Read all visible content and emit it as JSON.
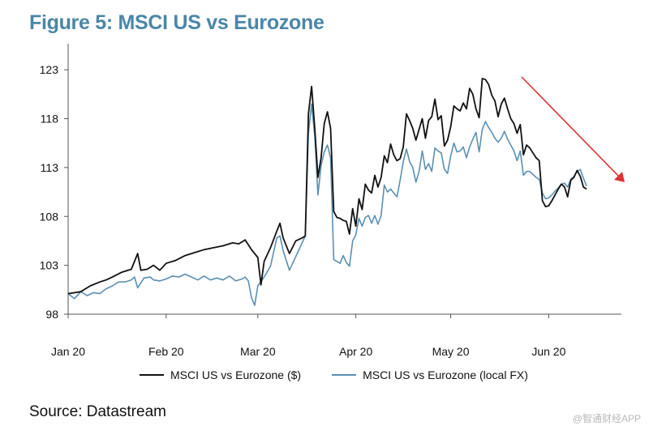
{
  "title": "Figure 5: MSCI US vs Eurozone",
  "source": "Source: Datastream",
  "watermark": "@智通财经APP",
  "colors": {
    "usd": "#111111",
    "local": "#5b8fb3",
    "arrow": "#e03030",
    "axis": "#555555"
  },
  "chart_data": {
    "type": "line",
    "title": "Figure 5: MSCI US vs Eurozone",
    "xlabel": "",
    "ylabel": "",
    "ylim": [
      98,
      125
    ],
    "xlim": [
      0,
      175
    ],
    "yticks": [
      98,
      103,
      108,
      113,
      118,
      123
    ],
    "xticks": [
      {
        "label": "Jan 20",
        "x": 0
      },
      {
        "label": "Feb 20",
        "x": 31
      },
      {
        "label": "Mar 20",
        "x": 60
      },
      {
        "label": "Apr 20",
        "x": 91
      },
      {
        "label": "May 20",
        "x": 121
      },
      {
        "label": "Jun 20",
        "x": 152
      }
    ],
    "grid": false,
    "legend": "bottom",
    "series": [
      {
        "name": "MSCI US vs Eurozone ($)",
        "points": [
          [
            0,
            100.1
          ],
          [
            4,
            100.3
          ],
          [
            7,
            100.9
          ],
          [
            10,
            101.3
          ],
          [
            12,
            101.5
          ],
          [
            14,
            101.8
          ],
          [
            17,
            102.3
          ],
          [
            20,
            102.6
          ],
          [
            22,
            104.2
          ],
          [
            23,
            102.5
          ],
          [
            25,
            102.6
          ],
          [
            27,
            103.0
          ],
          [
            29,
            102.5
          ],
          [
            31,
            103.2
          ],
          [
            34,
            103.5
          ],
          [
            37,
            104.0
          ],
          [
            40,
            104.3
          ],
          [
            43,
            104.6
          ],
          [
            46,
            104.8
          ],
          [
            49,
            105.0
          ],
          [
            52,
            105.3
          ],
          [
            54,
            105.2
          ],
          [
            56,
            105.6
          ],
          [
            58,
            104.6
          ],
          [
            60,
            103.8
          ],
          [
            61,
            101.0
          ],
          [
            62,
            103.4
          ],
          [
            64,
            104.8
          ],
          [
            66,
            106.5
          ],
          [
            67,
            107.3
          ],
          [
            68,
            105.8
          ],
          [
            70,
            104.2
          ],
          [
            72,
            105.5
          ],
          [
            74,
            105.8
          ],
          [
            75,
            106.0
          ],
          [
            76,
            118.5
          ],
          [
            77,
            121.3
          ],
          [
            78,
            117.0
          ],
          [
            79,
            112.0
          ],
          [
            80,
            114.0
          ],
          [
            81,
            117.5
          ],
          [
            82,
            118.7
          ],
          [
            83,
            117.0
          ],
          [
            84,
            108.5
          ],
          [
            85,
            107.9
          ],
          [
            86,
            107.8
          ],
          [
            87,
            107.6
          ],
          [
            88,
            107.5
          ],
          [
            89,
            106.2
          ],
          [
            90,
            108.8
          ],
          [
            91,
            107.0
          ],
          [
            92,
            109.8
          ],
          [
            93,
            108.7
          ],
          [
            94,
            111.3
          ],
          [
            95,
            110.7
          ],
          [
            96,
            110.4
          ],
          [
            97,
            112.2
          ],
          [
            98,
            111.0
          ],
          [
            99,
            112.0
          ],
          [
            100,
            114.2
          ],
          [
            101,
            113.5
          ],
          [
            102,
            115.4
          ],
          [
            103,
            114.3
          ],
          [
            104,
            113.7
          ],
          [
            105,
            113.9
          ],
          [
            106,
            115.1
          ],
          [
            107,
            118.5
          ],
          [
            108,
            117.8
          ],
          [
            109,
            117.0
          ],
          [
            110,
            115.8
          ],
          [
            111,
            116.9
          ],
          [
            112,
            118.0
          ],
          [
            113,
            116.0
          ],
          [
            114,
            117.8
          ],
          [
            115,
            118.2
          ],
          [
            116,
            120.0
          ],
          [
            117,
            117.9
          ],
          [
            118,
            118.3
          ],
          [
            119,
            115.2
          ],
          [
            120,
            115.8
          ],
          [
            121,
            117.2
          ],
          [
            122,
            119.3
          ],
          [
            123,
            119.0
          ],
          [
            124,
            118.8
          ],
          [
            125,
            119.6
          ],
          [
            126,
            119.0
          ],
          [
            127,
            121.1
          ],
          [
            128,
            120.5
          ],
          [
            129,
            119.0
          ],
          [
            130,
            118.1
          ],
          [
            131,
            122.1
          ],
          [
            132,
            122.0
          ],
          [
            133,
            121.5
          ],
          [
            134,
            120.4
          ],
          [
            135,
            119.8
          ],
          [
            136,
            118.2
          ],
          [
            137,
            119.5
          ],
          [
            138,
            120.1
          ],
          [
            139,
            119.0
          ],
          [
            140,
            118.0
          ],
          [
            141,
            117.5
          ],
          [
            142,
            116.5
          ],
          [
            143,
            117.4
          ],
          [
            144,
            114.3
          ],
          [
            145,
            115.3
          ],
          [
            146,
            115.0
          ],
          [
            147,
            114.5
          ],
          [
            148,
            114.0
          ],
          [
            149,
            113.7
          ],
          [
            150,
            109.6
          ],
          [
            151,
            109.0
          ],
          [
            152,
            109.1
          ],
          [
            153,
            109.6
          ],
          [
            154,
            110.2
          ],
          [
            155,
            110.8
          ],
          [
            156,
            111.3
          ],
          [
            157,
            111.0
          ],
          [
            158,
            110.0
          ],
          [
            159,
            111.7
          ],
          [
            160,
            112.0
          ],
          [
            161,
            112.7
          ],
          [
            162,
            112.1
          ],
          [
            163,
            111.0
          ],
          [
            164,
            110.8
          ]
        ]
      },
      {
        "name": "MSCI US vs Eurozone (local FX)",
        "points": [
          [
            0,
            100.1
          ],
          [
            2,
            99.6
          ],
          [
            4,
            100.3
          ],
          [
            6,
            99.9
          ],
          [
            8,
            100.2
          ],
          [
            10,
            100.1
          ],
          [
            12,
            100.6
          ],
          [
            14,
            100.9
          ],
          [
            16,
            101.3
          ],
          [
            18,
            101.3
          ],
          [
            20,
            101.5
          ],
          [
            21,
            101.8
          ],
          [
            22,
            100.7
          ],
          [
            24,
            101.7
          ],
          [
            26,
            101.8
          ],
          [
            27,
            101.5
          ],
          [
            29,
            101.4
          ],
          [
            31,
            101.6
          ],
          [
            33,
            101.9
          ],
          [
            35,
            101.8
          ],
          [
            37,
            102.1
          ],
          [
            39,
            101.8
          ],
          [
            41,
            101.5
          ],
          [
            43,
            101.9
          ],
          [
            45,
            101.5
          ],
          [
            47,
            101.7
          ],
          [
            49,
            101.5
          ],
          [
            51,
            101.9
          ],
          [
            53,
            101.4
          ],
          [
            55,
            101.6
          ],
          [
            56,
            101.8
          ],
          [
            57,
            101.4
          ],
          [
            58,
            99.7
          ],
          [
            59,
            98.9
          ],
          [
            60,
            100.9
          ],
          [
            62,
            101.8
          ],
          [
            64,
            102.9
          ],
          [
            66,
            105.8
          ],
          [
            67,
            106.0
          ],
          [
            68,
            104.5
          ],
          [
            70,
            102.5
          ],
          [
            72,
            103.9
          ],
          [
            74,
            105.3
          ],
          [
            75,
            106.0
          ],
          [
            76,
            116.5
          ],
          [
            77,
            119.5
          ],
          [
            78,
            116.2
          ],
          [
            79,
            110.2
          ],
          [
            80,
            113.2
          ],
          [
            81,
            114.6
          ],
          [
            82,
            115.3
          ],
          [
            83,
            114.0
          ],
          [
            84,
            103.6
          ],
          [
            85,
            103.4
          ],
          [
            86,
            103.2
          ],
          [
            87,
            104.0
          ],
          [
            88,
            103.3
          ],
          [
            89,
            102.9
          ],
          [
            90,
            105.5
          ],
          [
            91,
            106.1
          ],
          [
            92,
            107.8
          ],
          [
            93,
            107.0
          ],
          [
            94,
            107.9
          ],
          [
            95,
            108.1
          ],
          [
            96,
            107.3
          ],
          [
            97,
            108.1
          ],
          [
            98,
            107.2
          ],
          [
            99,
            108.1
          ],
          [
            100,
            111.2
          ],
          [
            101,
            110.5
          ],
          [
            102,
            110.8
          ],
          [
            103,
            110.4
          ],
          [
            104,
            110.0
          ],
          [
            105,
            111.7
          ],
          [
            106,
            113.6
          ],
          [
            107,
            114.9
          ],
          [
            108,
            113.6
          ],
          [
            109,
            113.0
          ],
          [
            110,
            111.5
          ],
          [
            111,
            112.6
          ],
          [
            112,
            114.7
          ],
          [
            113,
            112.8
          ],
          [
            114,
            113.4
          ],
          [
            115,
            112.6
          ],
          [
            116,
            115.0
          ],
          [
            117,
            114.7
          ],
          [
            118,
            114.5
          ],
          [
            119,
            112.8
          ],
          [
            120,
            112.4
          ],
          [
            121,
            114.2
          ],
          [
            122,
            115.5
          ],
          [
            123,
            114.6
          ],
          [
            124,
            114.7
          ],
          [
            125,
            115.1
          ],
          [
            126,
            114.0
          ],
          [
            127,
            115.1
          ],
          [
            128,
            115.9
          ],
          [
            129,
            116.6
          ],
          [
            130,
            114.6
          ],
          [
            131,
            116.9
          ],
          [
            132,
            117.7
          ],
          [
            133,
            117.1
          ],
          [
            134,
            116.6
          ],
          [
            135,
            116.0
          ],
          [
            136,
            115.6
          ],
          [
            137,
            116.0
          ],
          [
            138,
            116.7
          ],
          [
            139,
            115.9
          ],
          [
            140,
            115.3
          ],
          [
            141,
            114.7
          ],
          [
            142,
            113.7
          ],
          [
            143,
            114.7
          ],
          [
            144,
            112.2
          ],
          [
            145,
            112.6
          ],
          [
            146,
            112.6
          ],
          [
            147,
            112.3
          ],
          [
            148,
            112.0
          ],
          [
            149,
            111.8
          ],
          [
            150,
            110.4
          ],
          [
            151,
            109.8
          ],
          [
            152,
            109.9
          ],
          [
            153,
            110.2
          ],
          [
            154,
            110.6
          ],
          [
            155,
            110.9
          ],
          [
            156,
            111.3
          ],
          [
            157,
            111.4
          ],
          [
            158,
            111.0
          ],
          [
            159,
            111.8
          ],
          [
            160,
            112.1
          ],
          [
            161,
            112.6
          ],
          [
            162,
            112.8
          ],
          [
            163,
            111.9
          ],
          [
            164,
            111.1
          ]
        ]
      }
    ]
  }
}
